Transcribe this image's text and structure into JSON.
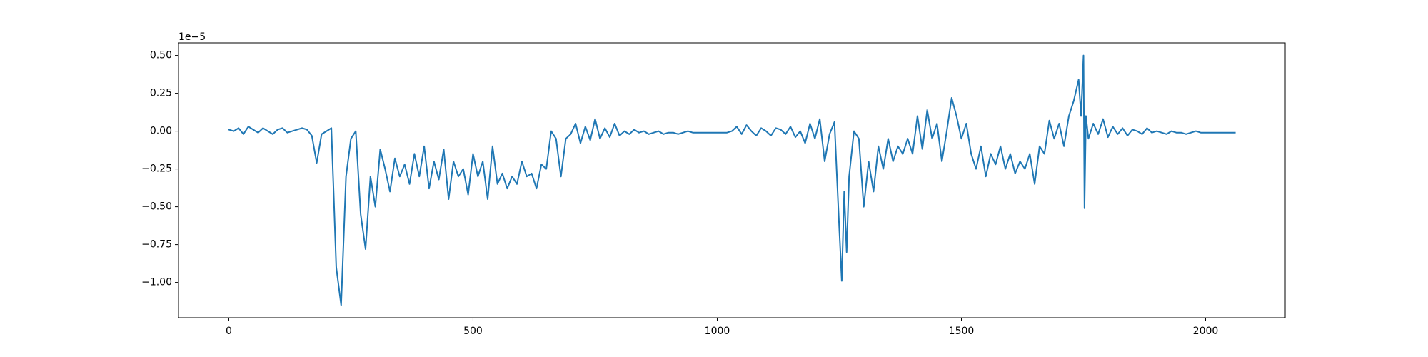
{
  "chart_data": {
    "type": "line",
    "y_offset_text": "1e−5",
    "color": "#1f77b4",
    "x": [
      0,
      10,
      20,
      30,
      40,
      50,
      60,
      70,
      80,
      90,
      100,
      110,
      120,
      130,
      140,
      150,
      160,
      170,
      180,
      190,
      200,
      210,
      220,
      230,
      240,
      250,
      260,
      270,
      280,
      290,
      300,
      310,
      320,
      330,
      340,
      350,
      360,
      370,
      380,
      390,
      400,
      410,
      420,
      430,
      440,
      450,
      460,
      470,
      480,
      490,
      500,
      510,
      520,
      530,
      540,
      550,
      560,
      570,
      580,
      590,
      600,
      610,
      620,
      630,
      640,
      650,
      660,
      670,
      680,
      690,
      700,
      710,
      720,
      730,
      740,
      750,
      760,
      770,
      780,
      790,
      800,
      810,
      820,
      830,
      840,
      850,
      860,
      870,
      880,
      890,
      900,
      910,
      920,
      930,
      940,
      950,
      960,
      970,
      980,
      990,
      1000,
      1010,
      1020,
      1030,
      1040,
      1050,
      1060,
      1070,
      1080,
      1090,
      1100,
      1110,
      1120,
      1130,
      1140,
      1150,
      1160,
      1170,
      1180,
      1190,
      1200,
      1210,
      1220,
      1230,
      1240,
      1250,
      1255,
      1260,
      1265,
      1270,
      1280,
      1290,
      1300,
      1310,
      1320,
      1330,
      1340,
      1350,
      1360,
      1370,
      1380,
      1390,
      1400,
      1410,
      1420,
      1430,
      1440,
      1450,
      1460,
      1470,
      1480,
      1490,
      1500,
      1510,
      1520,
      1530,
      1540,
      1550,
      1560,
      1570,
      1580,
      1590,
      1600,
      1610,
      1620,
      1630,
      1640,
      1650,
      1660,
      1670,
      1680,
      1690,
      1700,
      1710,
      1720,
      1730,
      1740,
      1745,
      1750,
      1752,
      1755,
      1760,
      1770,
      1780,
      1790,
      1800,
      1810,
      1820,
      1830,
      1840,
      1850,
      1860,
      1870,
      1880,
      1890,
      1900,
      1910,
      1920,
      1930,
      1940,
      1950,
      1960,
      1970,
      1980,
      1990,
      2000,
      2010,
      2020,
      2030,
      2040,
      2050,
      2060
    ],
    "values": [
      0.01,
      0.0,
      0.02,
      -0.02,
      0.03,
      0.01,
      -0.01,
      0.02,
      0.0,
      -0.02,
      0.01,
      0.02,
      -0.01,
      0.0,
      0.01,
      0.02,
      0.01,
      -0.03,
      -0.21,
      -0.02,
      0.0,
      0.02,
      -0.9,
      -1.15,
      -0.3,
      -0.05,
      0.0,
      -0.55,
      -0.78,
      -0.3,
      -0.5,
      -0.12,
      -0.25,
      -0.4,
      -0.18,
      -0.3,
      -0.22,
      -0.35,
      -0.15,
      -0.3,
      -0.1,
      -0.38,
      -0.2,
      -0.32,
      -0.12,
      -0.45,
      -0.2,
      -0.3,
      -0.25,
      -0.42,
      -0.15,
      -0.3,
      -0.2,
      -0.45,
      -0.1,
      -0.35,
      -0.28,
      -0.38,
      -0.3,
      -0.35,
      -0.2,
      -0.3,
      -0.28,
      -0.38,
      -0.22,
      -0.25,
      0.0,
      -0.05,
      -0.3,
      -0.05,
      -0.02,
      0.05,
      -0.08,
      0.03,
      -0.06,
      0.08,
      -0.05,
      0.02,
      -0.04,
      0.05,
      -0.03,
      0.0,
      -0.02,
      0.01,
      -0.01,
      0.0,
      -0.02,
      -0.01,
      0.0,
      -0.02,
      -0.01,
      -0.01,
      -0.02,
      -0.01,
      0.0,
      -0.01,
      -0.01,
      -0.01,
      -0.01,
      -0.01,
      -0.01,
      -0.01,
      -0.01,
      0.0,
      0.03,
      -0.02,
      0.04,
      0.0,
      -0.03,
      0.02,
      0.0,
      -0.03,
      0.02,
      0.01,
      -0.02,
      0.03,
      -0.04,
      0.0,
      -0.08,
      0.05,
      -0.05,
      0.08,
      -0.2,
      -0.02,
      0.06,
      -0.65,
      -0.99,
      -0.4,
      -0.8,
      -0.3,
      0.0,
      -0.05,
      -0.5,
      -0.2,
      -0.4,
      -0.1,
      -0.25,
      -0.05,
      -0.2,
      -0.1,
      -0.15,
      -0.05,
      -0.15,
      0.1,
      -0.12,
      0.14,
      -0.05,
      0.05,
      -0.2,
      0.0,
      0.22,
      0.1,
      -0.05,
      0.05,
      -0.15,
      -0.25,
      -0.1,
      -0.3,
      -0.15,
      -0.22,
      -0.1,
      -0.25,
      -0.15,
      -0.28,
      -0.2,
      -0.25,
      -0.15,
      -0.35,
      -0.1,
      -0.15,
      0.07,
      -0.05,
      0.05,
      -0.1,
      0.1,
      0.2,
      0.34,
      0.1,
      0.5,
      -0.51,
      0.1,
      -0.05,
      0.05,
      -0.02,
      0.08,
      -0.04,
      0.03,
      -0.02,
      0.02,
      -0.03,
      0.01,
      0.0,
      -0.02,
      0.02,
      -0.01,
      0.0,
      -0.01,
      -0.02,
      0.0,
      -0.01,
      -0.01,
      -0.02,
      -0.01,
      0.0,
      -0.01,
      -0.01,
      -0.01,
      -0.01,
      -0.01,
      -0.01,
      -0.01,
      -0.01
    ],
    "xlim": [
      -103,
      2163
    ],
    "xticks": [
      0,
      500,
      1000,
      1500,
      2000
    ],
    "ylim": [
      -1.233,
      0.583
    ],
    "yticks": [
      {
        "value": -1.0,
        "label": "−1.00"
      },
      {
        "value": -0.75,
        "label": "−0.75"
      },
      {
        "value": -0.5,
        "label": "−0.50"
      },
      {
        "value": -0.25,
        "label": "−0.25"
      },
      {
        "value": 0.0,
        "label": "0.00"
      },
      {
        "value": 0.25,
        "label": "0.25"
      },
      {
        "value": 0.5,
        "label": "0.50"
      }
    ],
    "grid": false
  }
}
